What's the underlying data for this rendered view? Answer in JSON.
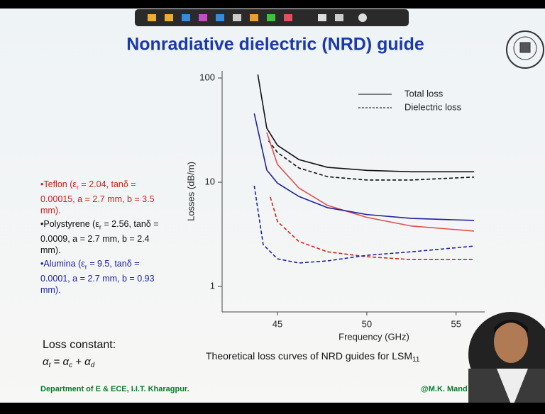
{
  "title": "Nonradiative dielectric (NRD) guide",
  "materials": [
    {
      "prefix": "•Teflon (ε",
      "sub": "r",
      "rest": " = 2.04, tanδ = 0.00015, a = 2.7 mm, b = 3.5 mm).",
      "color": "#d42020"
    },
    {
      "prefix": "•Polystyrene (ε",
      "sub": "r",
      "rest": " = 2.56, tanδ = 0.0009, a = 2.7 mm, b = 2.4 mm).",
      "color": "#111111"
    },
    {
      "prefix": "•Alumina (ε",
      "sub": "r",
      "rest": " = 9.5, tanδ = 0.0001, a = 2.7 mm, b = 0.93 mm).",
      "color": "#1e22a0"
    }
  ],
  "loss_constant": {
    "label": "Loss constant:",
    "formula": [
      [
        "α",
        "t"
      ],
      [
        " = α",
        "c"
      ],
      [
        " + α",
        "d"
      ]
    ]
  },
  "footer": {
    "left": "Department of E & ECE, I.I.T. Kharagpur.",
    "right": "@M.K. Mand"
  },
  "chart_data": {
    "type": "line",
    "caption": "Theoretical loss curves of NRD guides for LSM",
    "caption_sub": "11",
    "xlabel": "Frequency (GHz)",
    "ylabel": "Losses (dB/m)",
    "xlim": [
      41.9,
      56.6
    ],
    "xticks": [
      45,
      50,
      55
    ],
    "ylim": [
      0.57,
      117
    ],
    "yticks": [
      1,
      10,
      100
    ],
    "log_y": true,
    "legend": [
      {
        "label": "Total loss",
        "dashed": false,
        "color": "#555555"
      },
      {
        "label": "Dielectric loss",
        "dashed": true,
        "color": "#555555"
      }
    ],
    "series": [
      {
        "color": "#111111",
        "dashed": false,
        "x": [
          43.9,
          44.4,
          45,
          46.2,
          47.8,
          50,
          52.5,
          56
        ],
        "values": [
          108,
          33,
          22.6,
          16.5,
          13.9,
          13.0,
          12.6,
          12.6
        ]
      },
      {
        "color": "#111111",
        "dashed": true,
        "x": [
          44.5,
          45,
          46.2,
          47.8,
          50,
          52.5,
          56
        ],
        "values": [
          25,
          19.3,
          13.7,
          11.3,
          10.5,
          10.5,
          11.2
        ]
      },
      {
        "color": "#e05050",
        "dashed": false,
        "x": [
          44.4,
          45,
          46.2,
          47.8,
          50,
          52.5,
          56
        ],
        "values": [
          30,
          14.8,
          8.8,
          6.0,
          4.6,
          3.8,
          3.4
        ]
      },
      {
        "color": "#d42020",
        "dashed": true,
        "x": [
          44.6,
          45,
          46.2,
          47.8,
          50,
          52.5,
          56
        ],
        "values": [
          7.2,
          4.2,
          2.7,
          2.15,
          1.93,
          1.81,
          1.81
        ]
      },
      {
        "color": "#1e22a0",
        "dashed": false,
        "x": [
          43.7,
          44.4,
          45,
          46.2,
          47.8,
          50,
          52.5,
          56
        ],
        "values": [
          45.6,
          13.1,
          9.8,
          7.3,
          5.7,
          4.9,
          4.5,
          4.3
        ]
      },
      {
        "color": "#1e22a0",
        "dashed": true,
        "x": [
          43.7,
          44.2,
          45,
          46.2,
          47.8,
          50,
          52.5,
          56
        ],
        "values": [
          9.25,
          2.52,
          1.84,
          1.68,
          1.76,
          1.99,
          2.15,
          2.44
        ]
      }
    ]
  }
}
